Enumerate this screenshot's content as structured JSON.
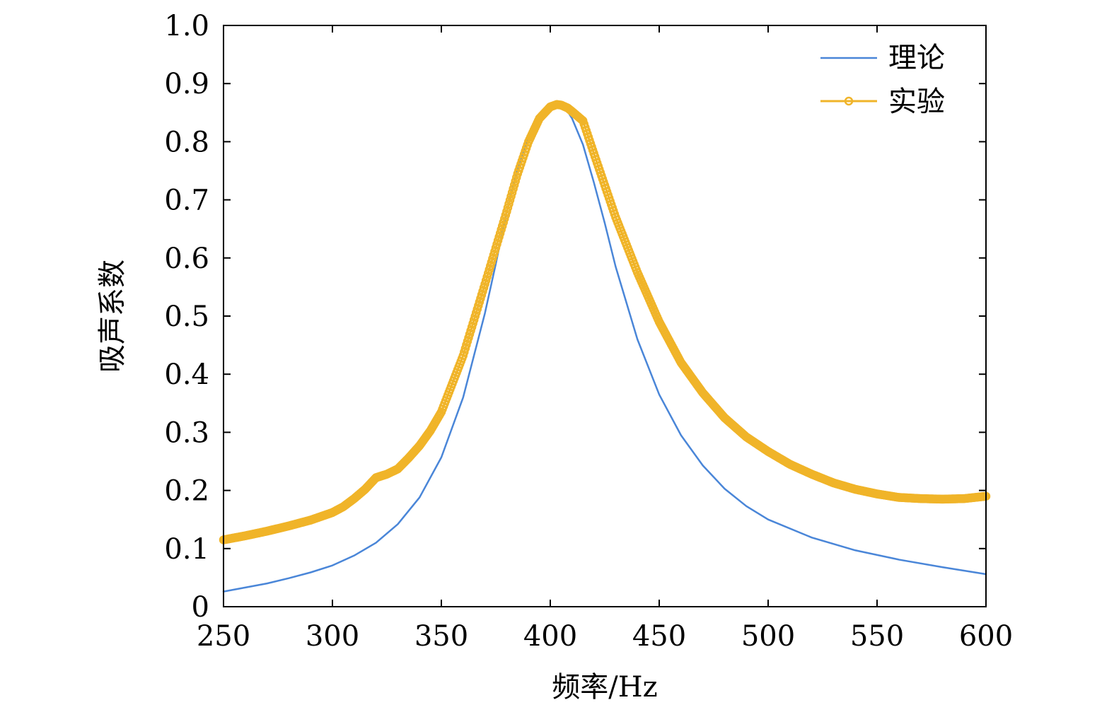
{
  "chart_data": {
    "type": "line",
    "title": "",
    "xlabel": "频率/Hz",
    "ylabel": "吸声系数",
    "xlim": [
      250,
      600
    ],
    "ylim": [
      0,
      1.0
    ],
    "xticks": [
      250,
      300,
      350,
      400,
      450,
      500,
      550,
      600
    ],
    "yticks": [
      0,
      0.1,
      0.2,
      0.3,
      0.4,
      0.5,
      0.6,
      0.7,
      0.8,
      0.9,
      1.0
    ],
    "xtick_labels": [
      "250",
      "300",
      "350",
      "400",
      "450",
      "500",
      "550",
      "600"
    ],
    "ytick_labels": [
      "0",
      "0.1",
      "0.2",
      "0.3",
      "0.4",
      "0.5",
      "0.6",
      "0.7",
      "0.8",
      "0.9",
      "1.0"
    ],
    "grid": false,
    "legend_position": "top-right",
    "series": [
      {
        "name": "理论",
        "color": "#4a86d8",
        "marker": "none",
        "x": [
          250,
          260,
          270,
          280,
          290,
          300,
          310,
          320,
          330,
          340,
          350,
          360,
          370,
          375,
          380,
          385,
          390,
          395,
          400,
          403,
          405,
          408,
          410,
          415,
          420,
          425,
          430,
          440,
          450,
          460,
          470,
          480,
          490,
          500,
          520,
          540,
          560,
          580,
          600
        ],
        "values": [
          0.026,
          0.033,
          0.04,
          0.049,
          0.059,
          0.071,
          0.088,
          0.11,
          0.142,
          0.188,
          0.257,
          0.36,
          0.505,
          0.59,
          0.68,
          0.755,
          0.81,
          0.845,
          0.86,
          0.864,
          0.862,
          0.852,
          0.84,
          0.795,
          0.73,
          0.66,
          0.585,
          0.46,
          0.365,
          0.295,
          0.243,
          0.203,
          0.173,
          0.15,
          0.119,
          0.097,
          0.081,
          0.068,
          0.056
        ]
      },
      {
        "name": "实验",
        "color": "#f0b429",
        "marker": "circle",
        "x": [
          250,
          260,
          270,
          280,
          290,
          300,
          305,
          310,
          315,
          320,
          325,
          330,
          335,
          340,
          345,
          350,
          360,
          370,
          380,
          385,
          390,
          395,
          400,
          403,
          405,
          408,
          410,
          415,
          420,
          425,
          430,
          440,
          450,
          460,
          470,
          480,
          490,
          500,
          510,
          520,
          530,
          540,
          550,
          560,
          570,
          580,
          590,
          600
        ],
        "values": [
          0.115,
          0.122,
          0.13,
          0.139,
          0.149,
          0.162,
          0.172,
          0.186,
          0.202,
          0.222,
          0.228,
          0.237,
          0.256,
          0.277,
          0.303,
          0.335,
          0.432,
          0.555,
          0.68,
          0.745,
          0.8,
          0.84,
          0.86,
          0.864,
          0.863,
          0.858,
          0.852,
          0.836,
          0.78,
          0.725,
          0.67,
          0.575,
          0.49,
          0.42,
          0.368,
          0.325,
          0.292,
          0.267,
          0.245,
          0.228,
          0.213,
          0.202,
          0.194,
          0.188,
          0.186,
          0.185,
          0.186,
          0.19
        ]
      }
    ]
  }
}
